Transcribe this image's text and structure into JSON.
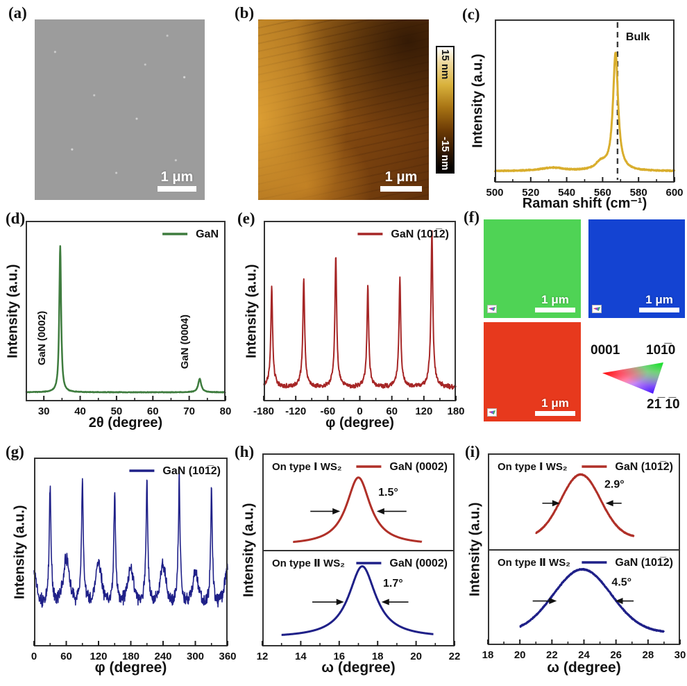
{
  "colors": {
    "map_green": "#4FD355",
    "map_blue": "#1443D2",
    "map_red": "#E7391D",
    "raman_gold": "#D9AE2E",
    "xrd_green": "#3E7C3E",
    "phi_red": "#A62626",
    "navy": "#1F2088",
    "rock_red": "#B03028"
  },
  "panels": {
    "a": {
      "label": "(a)",
      "scalebar": "1 μm"
    },
    "b": {
      "label": "(b)",
      "scalebar": "1 μm",
      "colorbar_top": "15 nm",
      "colorbar_bottom": "-15 nm"
    },
    "c": {
      "label": "(c)"
    },
    "d": {
      "label": "(d)"
    },
    "e": {
      "label": "(e)"
    },
    "f": {
      "label": "(f)",
      "scalebars": {
        "green": "1 μm",
        "blue": "1 μm",
        "red": "1 μm"
      },
      "key": {
        "top_left": "0001",
        "top_right": "101̅0",
        "bottom_right": "21̅ 1̅0"
      }
    },
    "g": {
      "label": "(g)"
    },
    "h": {
      "label": "(h)"
    },
    "i": {
      "label": "(i)"
    }
  },
  "chart_data": [
    {
      "id": "c",
      "type": "line",
      "title": "Raman spectrum of GaN",
      "xlabel": "Raman shift (cm⁻¹)",
      "ylabel": "Intensity (a.u.)",
      "xlim": [
        500,
        600
      ],
      "xticks": [
        500,
        520,
        540,
        560,
        580,
        600
      ],
      "grid": false,
      "panels": [
        {
          "color": "#D9AE2E",
          "lw": 3,
          "baseline": 0.07,
          "noise": 0.004,
          "seed": 5,
          "range": [
            500,
            600
          ],
          "shape": "lorentz",
          "peaks": [
            {
              "c": 532,
              "h": 0.02,
              "w": 8
            },
            {
              "c": 559,
              "h": 0.045,
              "w": 3.5
            },
            {
              "c": 567.2,
              "h": 0.72,
              "w": 1.7
            }
          ],
          "vline": {
            "x": 568.3,
            "label": "Bulk"
          }
        }
      ]
    },
    {
      "id": "d",
      "type": "line",
      "title": "XRD 2theta scan of GaN",
      "xlabel": "2θ (degree)",
      "ylabel": "Intensity (a.u.)",
      "xlim": [
        25,
        80
      ],
      "xticks": [
        30,
        40,
        50,
        60,
        70,
        80
      ],
      "grid": false,
      "panels": [
        {
          "color": "#3E7C3E",
          "lw": 2.5,
          "baseline": 0.05,
          "noise": 0.002,
          "seed": 9,
          "range": [
            25,
            80
          ],
          "shape": "lorentz",
          "peaks": [
            {
              "c": 34.5,
              "h": 0.81,
              "w": 0.3
            },
            {
              "c": 72.9,
              "h": 0.075,
              "w": 0.5
            }
          ],
          "legend": [
            {
              "color": "#3E7C3E",
              "label": "GaN"
            }
          ],
          "vtexts": [
            {
              "x": 30.3,
              "y": 0.35,
              "text": "GaN (0002)"
            },
            {
              "x": 69.7,
              "y": 0.33,
              "text": "GaN (0004)"
            }
          ]
        }
      ]
    },
    {
      "id": "e",
      "type": "line",
      "title": "XRD phi scan of GaN (10-12)",
      "xlabel": "φ (degree)",
      "ylabel": "Intensity (a.u.)",
      "xlim": [
        -180,
        180
      ],
      "xticks": [
        -180,
        -120,
        -60,
        0,
        60,
        120,
        180
      ],
      "grid": false,
      "panels": [
        {
          "color": "#A62626",
          "lw": 2,
          "baseline": 0.075,
          "noise": 0.015,
          "seed": 3,
          "range": [
            -180,
            180
          ],
          "shape": "lorentz",
          "foot": {
            "h": 0.15,
            "w": 3.2
          },
          "peaks": [
            {
              "c": -165,
              "h": 0.48,
              "w": 1.8
            },
            {
              "c": -105,
              "h": 0.53,
              "w": 1.8
            },
            {
              "c": -45,
              "h": 0.63,
              "w": 1.8
            },
            {
              "c": 15,
              "h": 0.48,
              "w": 1.8
            },
            {
              "c": 75,
              "h": 0.52,
              "w": 1.8
            },
            {
              "c": 135,
              "h": 0.76,
              "w": 1.8
            }
          ],
          "legend": [
            {
              "color": "#A62626",
              "label": "GaN (101̅2)"
            }
          ]
        }
      ]
    },
    {
      "id": "g",
      "type": "line",
      "title": "XRD phi scan of GaN (10-12), twelve-fold",
      "xlabel": "φ (degree)",
      "ylabel": "Intensity (a.u.)",
      "xlim": [
        0,
        360
      ],
      "xticks": [
        0,
        60,
        120,
        180,
        240,
        300,
        360
      ],
      "grid": false,
      "panels": [
        {
          "color": "#1F2088",
          "lw": 1.6,
          "baseline": 0.12,
          "noise": 0.045,
          "seed": 13,
          "range": [
            0,
            360
          ],
          "shape": "lorentz",
          "foot": {
            "h": 0.28,
            "w": 3.2
          },
          "peaks": [
            {
              "c": 30,
              "h": 0.52,
              "w": 1.6
            },
            {
              "c": 90,
              "h": 0.55,
              "w": 1.6
            },
            {
              "c": 150,
              "h": 0.49,
              "w": 1.6
            },
            {
              "c": 210,
              "h": 0.53,
              "w": 1.6
            },
            {
              "c": 270,
              "h": 0.56,
              "w": 1.6
            },
            {
              "c": 330,
              "h": 0.5,
              "w": 1.6
            },
            {
              "c": 0,
              "h": 0.2,
              "w": 7
            },
            {
              "c": 60,
              "h": 0.24,
              "w": 7
            },
            {
              "c": 120,
              "h": 0.22,
              "w": 7
            },
            {
              "c": 180,
              "h": 0.2,
              "w": 7
            },
            {
              "c": 240,
              "h": 0.21,
              "w": 7
            },
            {
              "c": 300,
              "h": 0.19,
              "w": 7
            },
            {
              "c": 360,
              "h": 0.22,
              "w": 7
            }
          ],
          "legend": [
            {
              "color": "#1F2088",
              "label": "GaN (101̅2)"
            }
          ]
        }
      ]
    },
    {
      "id": "h",
      "type": "line",
      "title": "XRC of GaN (0002) on type I and type II WS2",
      "xlabel": "ω (degree)",
      "ylabel": "Intensity (a.u.)",
      "xlim": [
        12,
        22
      ],
      "xticks": [
        12,
        14,
        16,
        18,
        20,
        22
      ],
      "grid": false,
      "panels": [
        {
          "color": "#B03028",
          "lw": 3,
          "baseline": 0.05,
          "noise": 0,
          "seed": 1,
          "range": [
            13.6,
            20.3
          ],
          "shape": "lorentz",
          "peaks": [
            {
              "c": 17.0,
              "h": 0.7,
              "w": 0.75
            }
          ],
          "corner": "On type Ⅰ WS₂",
          "legend": [
            {
              "color": "#B03028",
              "label": "GaN (0002)"
            }
          ],
          "ann": {
            "y": 0.4,
            "l": [
              14.5,
              16.05
            ],
            "r": [
              19.5,
              17.95
            ],
            "label": "1.5°",
            "lx": 18.55,
            "ly": 0.56
          }
        },
        {
          "color": "#1F2088",
          "lw": 3,
          "baseline": 0.09,
          "noise": 0,
          "seed": 2,
          "range": [
            13.0,
            20.9
          ],
          "shape": "lorentz",
          "peaks": [
            {
              "c": 17.2,
              "h": 0.74,
              "w": 0.85
            }
          ],
          "corner": "On type Ⅱ WS₂",
          "legend": [
            {
              "color": "#1F2088",
              "label": "GaN (0002)"
            }
          ],
          "ann": {
            "y": 0.46,
            "l": [
              14.6,
              16.25
            ],
            "r": [
              19.6,
              18.2
            ],
            "label": "1.7°",
            "lx": 18.8,
            "ly": 0.62
          }
        }
      ]
    },
    {
      "id": "i",
      "type": "line",
      "title": "XRC of GaN (10-12) on type I and type II WS2",
      "xlabel": "ω (degree)",
      "ylabel": "Intensity (a.u.)",
      "xlim": [
        18,
        30
      ],
      "xticks": [
        18,
        20,
        22,
        24,
        26,
        28,
        30
      ],
      "grid": false,
      "panels": [
        {
          "color": "#B03028",
          "lw": 3,
          "baseline": 0.12,
          "noise": 0.004,
          "seed": 4,
          "range": [
            21.0,
            27.1
          ],
          "shape": "gauss",
          "peaks": [
            {
              "c": 23.8,
              "h": 0.66,
              "w": 1.23
            }
          ],
          "corner": "On type Ⅰ WS₂",
          "legend": [
            {
              "color": "#B03028",
              "label": "GaN (101̅2)"
            }
          ],
          "ann": {
            "y": 0.48,
            "l": [
              21.4,
              22.5
            ],
            "r": [
              26.35,
              25.35
            ],
            "label": "2.9°",
            "lx": 25.9,
            "ly": 0.64
          }
        },
        {
          "color": "#1F2088",
          "lw": 3,
          "baseline": 0.13,
          "noise": 0.006,
          "seed": 6,
          "range": [
            20.0,
            29.0
          ],
          "shape": "gauss",
          "peaks": [
            {
              "c": 23.9,
              "h": 0.66,
              "w": 1.8
            }
          ],
          "corner": "On type Ⅱ WS₂",
          "legend": [
            {
              "color": "#1F2088",
              "label": "GaN (101̅2)"
            }
          ],
          "ann": {
            "y": 0.46,
            "l": [
              20.8,
              22.3
            ],
            "r": [
              27.1,
              25.95
            ],
            "label": "4.5°",
            "lx": 26.35,
            "ly": 0.62
          }
        }
      ]
    }
  ]
}
